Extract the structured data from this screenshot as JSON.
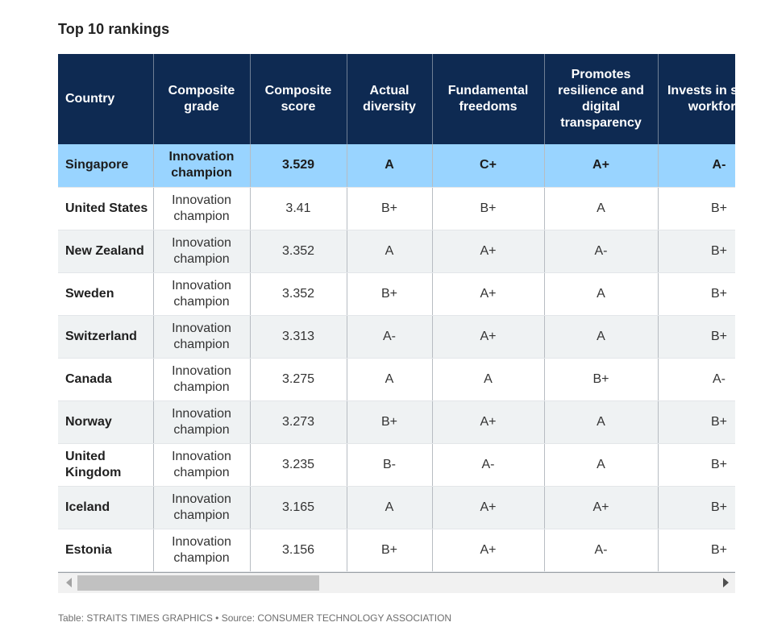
{
  "title": "Top 10 rankings",
  "source": "Table: STRAITS TIMES GRAPHICS • Source: CONSUMER TECHNOLOGY ASSOCIATION",
  "colors": {
    "header_bg": "#0e2a52",
    "highlight_row": "#99d4ff",
    "alt_row": "#eff2f3"
  },
  "columns": [
    "Country",
    "Composite grade",
    "Composite score",
    "Actual diversity",
    "Fundamental freedoms",
    "Promotes resilience and digital transparency",
    "Invests in skilled workforce"
  ],
  "rows": [
    [
      "Singapore",
      "Innovation champion",
      "3.529",
      "A",
      "C+",
      "A+",
      "A-"
    ],
    [
      "United States",
      "Innovation champion",
      "3.41",
      "B+",
      "B+",
      "A",
      "B+"
    ],
    [
      "New Zealand",
      "Innovation champion",
      "3.352",
      "A",
      "A+",
      "A-",
      "B+"
    ],
    [
      "Sweden",
      "Innovation champion",
      "3.352",
      "B+",
      "A+",
      "A",
      "B+"
    ],
    [
      "Switzerland",
      "Innovation champion",
      "3.313",
      "A-",
      "A+",
      "A",
      "B+"
    ],
    [
      "Canada",
      "Innovation champion",
      "3.275",
      "A",
      "A",
      "B+",
      "A-"
    ],
    [
      "Norway",
      "Innovation champion",
      "3.273",
      "B+",
      "A+",
      "A",
      "B+"
    ],
    [
      "United Kingdom",
      "Innovation champion",
      "3.235",
      "B-",
      "A-",
      "A",
      "B+"
    ],
    [
      "Iceland",
      "Innovation champion",
      "3.165",
      "A",
      "A+",
      "A+",
      "B+"
    ],
    [
      "Estonia",
      "Innovation champion",
      "3.156",
      "B+",
      "A+",
      "A-",
      "B+"
    ]
  ],
  "highlighted_row": 0,
  "icons": {
    "scroll_left": "triangle-left-icon",
    "scroll_right": "triangle-right-icon"
  }
}
